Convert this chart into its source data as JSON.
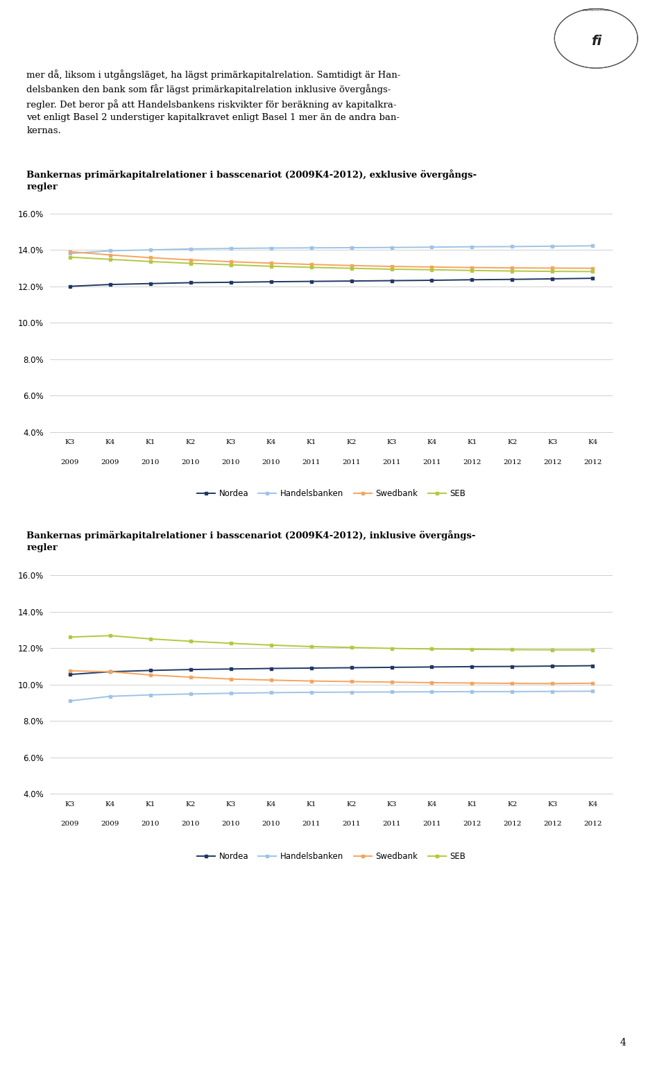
{
  "x_labels": [
    [
      "K3",
      "2009"
    ],
    [
      "K4",
      "2009"
    ],
    [
      "K1",
      "2010"
    ],
    [
      "K2",
      "2010"
    ],
    [
      "K3",
      "2010"
    ],
    [
      "K4",
      "2010"
    ],
    [
      "K1",
      "2011"
    ],
    [
      "K2",
      "2011"
    ],
    [
      "K3",
      "2011"
    ],
    [
      "K4",
      "2011"
    ],
    [
      "K1",
      "2012"
    ],
    [
      "K2",
      "2012"
    ],
    [
      "K3",
      "2012"
    ],
    [
      "K4",
      "2012"
    ]
  ],
  "chart1_title": "Bankernas primärkapitalrelationer i basscenariot (2009K4-2012), exklusive övergångs-\nregler",
  "chart2_title": "Bankernas primärkapitalrelationer i basscenariot (2009K4-2012), inklusive övergångs-\nregler",
  "header_lines": [
    "mer då, liksom i utgångsläget, ha lägst primärkapitalrelation. Samtidigt är Han-",
    "delsbanken den bank som får lägst primärkapitalrelation inklusive övergångs-",
    "regler. Det beror på att Handelsbankens riskvikter för beräkning av kapitalkra-",
    "vet enligt Basel 2 understiger kapitalkravet enligt Basel 1 mer än de andra ban-",
    "kernas."
  ],
  "colors": {
    "nordea": "#1F3864",
    "handelsbanken": "#9DC3E6",
    "swedbank": "#F4A460",
    "seb": "#B4C73E"
  },
  "chart1": {
    "nordea": [
      12.0,
      12.1,
      12.15,
      12.2,
      12.22,
      12.25,
      12.27,
      12.29,
      12.31,
      12.33,
      12.36,
      12.38,
      12.41,
      12.44
    ],
    "handelsbanken": [
      13.8,
      13.95,
      14.0,
      14.05,
      14.08,
      14.1,
      14.11,
      14.12,
      14.13,
      14.15,
      14.17,
      14.18,
      14.2,
      14.22
    ],
    "swedbank": [
      13.9,
      13.72,
      13.57,
      13.45,
      13.35,
      13.27,
      13.2,
      13.14,
      13.09,
      13.06,
      13.03,
      13.01,
      13.0,
      12.99
    ],
    "seb": [
      13.6,
      13.48,
      13.36,
      13.26,
      13.18,
      13.1,
      13.04,
      12.99,
      12.94,
      12.91,
      12.87,
      12.84,
      12.82,
      12.81
    ]
  },
  "chart2": {
    "nordea": [
      10.55,
      10.7,
      10.77,
      10.82,
      10.85,
      10.88,
      10.9,
      10.92,
      10.94,
      10.96,
      10.98,
      10.99,
      11.01,
      11.03
    ],
    "handelsbanken": [
      9.1,
      9.35,
      9.43,
      9.48,
      9.52,
      9.55,
      9.57,
      9.58,
      9.59,
      9.6,
      9.61,
      9.61,
      9.62,
      9.63
    ],
    "swedbank": [
      10.75,
      10.7,
      10.52,
      10.4,
      10.3,
      10.24,
      10.19,
      10.16,
      10.13,
      10.1,
      10.08,
      10.06,
      10.05,
      10.07
    ],
    "seb": [
      12.6,
      12.68,
      12.5,
      12.37,
      12.26,
      12.16,
      12.08,
      12.03,
      11.98,
      11.95,
      11.93,
      11.91,
      11.9,
      11.9
    ]
  },
  "ylim": [
    4.0,
    16.0
  ],
  "yticks": [
    4.0,
    6.0,
    8.0,
    10.0,
    12.0,
    14.0,
    16.0
  ],
  "legend_labels": [
    "Nordea",
    "Handelsbanken",
    "Swedbank",
    "SEB"
  ],
  "footer_page": "4"
}
